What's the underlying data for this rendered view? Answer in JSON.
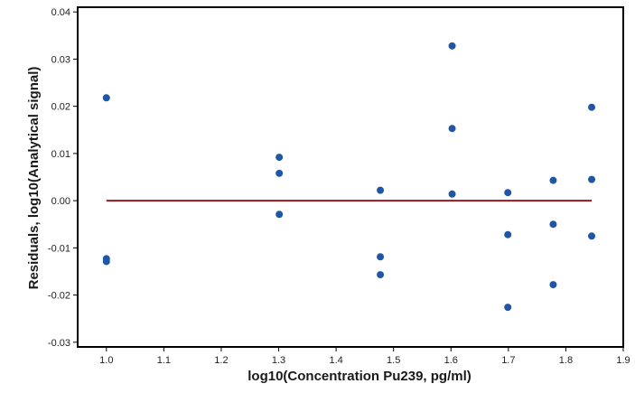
{
  "chart_data": {
    "type": "scatter",
    "title": "",
    "xlabel": "log10(Concentration Pu239, pg/ml)",
    "ylabel": "Residuals, log10(Analytical signal)",
    "xlim": [
      0.95,
      1.9
    ],
    "ylim": [
      -0.031,
      0.041
    ],
    "xticks": [
      1.0,
      1.1,
      1.2,
      1.3,
      1.4,
      1.5,
      1.6,
      1.7,
      1.8,
      1.9
    ],
    "xtick_labels": [
      "1.0",
      "1.1",
      "1.2",
      "1.3",
      "1.4",
      "1.5",
      "1.6",
      "1.7",
      "1.8",
      "1.9"
    ],
    "yticks": [
      -0.03,
      -0.02,
      -0.01,
      0.0,
      0.01,
      0.02,
      0.03,
      0.04
    ],
    "ytick_labels": [
      "-0.03",
      "-0.02",
      "-0.01",
      "0.00",
      "0.01",
      "0.02",
      "0.03",
      "0.04"
    ],
    "grid": false,
    "legend": "none",
    "colors": {
      "points": "#1f57a6",
      "reference_line": "#8b1c22",
      "frame": "#000000"
    },
    "reference_line": {
      "y": 0.0,
      "x_from": 1.0,
      "x_to": 1.845
    },
    "series": [
      {
        "points": [
          {
            "x": 1.0,
            "y": 0.0218
          },
          {
            "x": 1.0,
            "y": -0.0123
          },
          {
            "x": 1.0,
            "y": -0.0129
          },
          {
            "x": 1.301,
            "y": 0.0092
          },
          {
            "x": 1.301,
            "y": 0.0058
          },
          {
            "x": 1.301,
            "y": -0.0029
          },
          {
            "x": 1.477,
            "y": 0.0022
          },
          {
            "x": 1.477,
            "y": -0.0119
          },
          {
            "x": 1.477,
            "y": -0.0157
          },
          {
            "x": 1.602,
            "y": 0.0328
          },
          {
            "x": 1.602,
            "y": 0.0153
          },
          {
            "x": 1.602,
            "y": 0.0014
          },
          {
            "x": 1.699,
            "y": 0.0017
          },
          {
            "x": 1.699,
            "y": -0.0072
          },
          {
            "x": 1.699,
            "y": -0.0226
          },
          {
            "x": 1.778,
            "y": 0.0043
          },
          {
            "x": 1.778,
            "y": -0.005
          },
          {
            "x": 1.778,
            "y": -0.0178
          },
          {
            "x": 1.845,
            "y": 0.0198
          },
          {
            "x": 1.845,
            "y": 0.0045
          },
          {
            "x": 1.845,
            "y": -0.0075
          }
        ]
      }
    ]
  }
}
